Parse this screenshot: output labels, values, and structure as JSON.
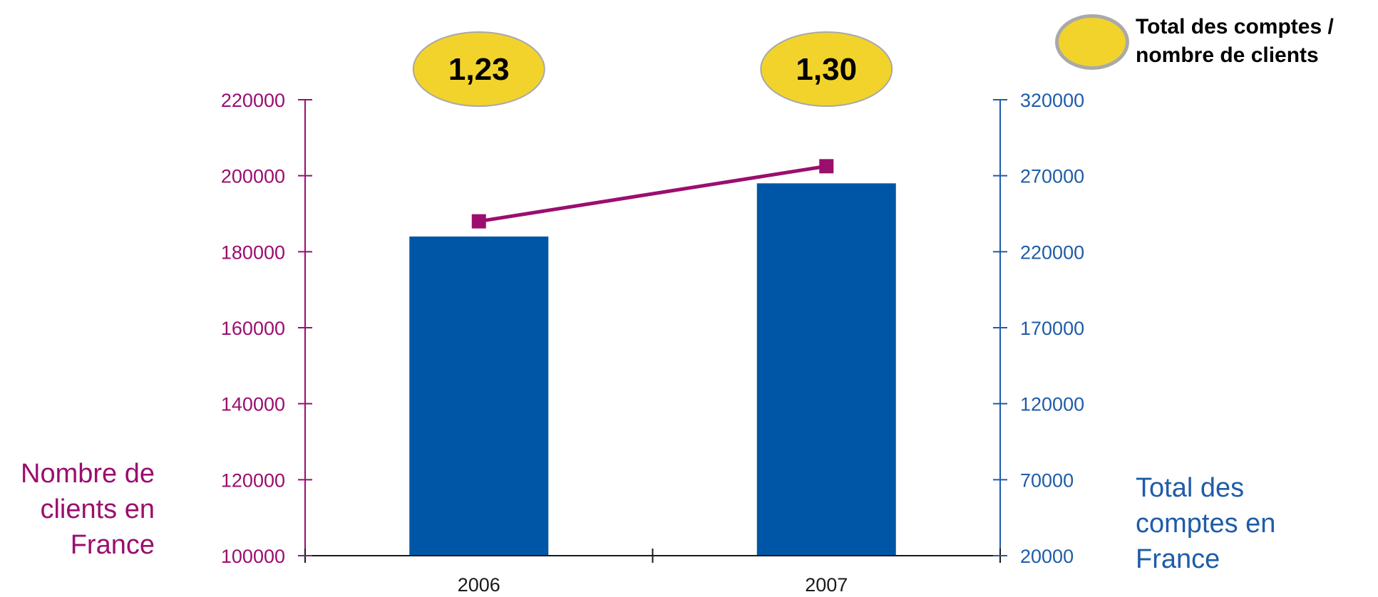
{
  "chart_data": {
    "type": "bar",
    "categories": [
      "2006",
      "2007"
    ],
    "series": [
      {
        "name": "Total des comptes en France",
        "chart_type": "bar",
        "axis": "right",
        "values": [
          230000,
          265000
        ],
        "color": "#0056a6"
      },
      {
        "name": "Nombre de clients en France",
        "chart_type": "line",
        "axis": "left",
        "values": [
          188000,
          202500
        ],
        "color": "#9b0e6e"
      }
    ],
    "ratio_series": {
      "name": "Total des comptes / nombre de clients",
      "values": [
        "1,23",
        "1,30"
      ],
      "color": "#f2d32b"
    },
    "y_left": {
      "label": "Nombre de clients en France",
      "ticks": [
        "100000",
        "120000",
        "140000",
        "160000",
        "180000",
        "200000",
        "220000"
      ],
      "range": [
        100000,
        220000
      ],
      "color": "#9b0e6e"
    },
    "y_right": {
      "label": "Total des comptes en France",
      "ticks": [
        "20000",
        "70000",
        "120000",
        "170000",
        "220000",
        "270000",
        "320000"
      ],
      "range": [
        20000,
        320000
      ],
      "color": "#1f5ca8"
    },
    "legend": {
      "label_line1": "Total des comptes /",
      "label_line2": "nombre de clients",
      "placement": "top-right"
    },
    "grid": false
  }
}
